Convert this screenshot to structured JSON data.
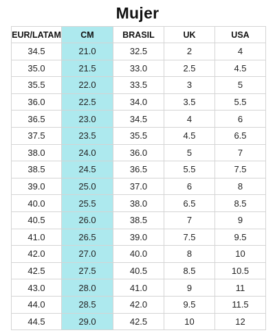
{
  "title": "Mujer",
  "highlight_color": "#ade9ee",
  "headers": [
    "EUR/LATAM",
    "CM",
    "BRASIL",
    "UK",
    "USA"
  ],
  "rows": [
    [
      "34.5",
      "21.0",
      "32.5",
      "2",
      "4"
    ],
    [
      "35.0",
      "21.5",
      "33.0",
      "2.5",
      "4.5"
    ],
    [
      "35.5",
      "22.0",
      "33.5",
      "3",
      "5"
    ],
    [
      "36.0",
      "22.5",
      "34.0",
      "3.5",
      "5.5"
    ],
    [
      "36.5",
      "23.0",
      "34.5",
      "4",
      "6"
    ],
    [
      "37.5",
      "23.5",
      "35.5",
      "4.5",
      "6.5"
    ],
    [
      "38.0",
      "24.0",
      "36.0",
      "5",
      "7"
    ],
    [
      "38.5",
      "24.5",
      "36.5",
      "5.5",
      "7.5"
    ],
    [
      "39.0",
      "25.0",
      "37.0",
      "6",
      "8"
    ],
    [
      "40.0",
      "25.5",
      "38.0",
      "6.5",
      "8.5"
    ],
    [
      "40.5",
      "26.0",
      "38.5",
      "7",
      "9"
    ],
    [
      "41.0",
      "26.5",
      "39.0",
      "7.5",
      "9.5"
    ],
    [
      "42.0",
      "27.0",
      "40.0",
      "8",
      "10"
    ],
    [
      "42.5",
      "27.5",
      "40.5",
      "8.5",
      "10.5"
    ],
    [
      "43.0",
      "28.0",
      "41.0",
      "9",
      "11"
    ],
    [
      "44.0",
      "28.5",
      "42.0",
      "9.5",
      "11.5"
    ],
    [
      "44.5",
      "29.0",
      "42.5",
      "10",
      "12"
    ]
  ]
}
